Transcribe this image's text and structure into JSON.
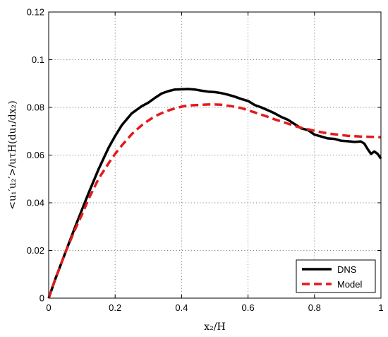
{
  "chart_data": {
    "type": "line",
    "xlabel": "x₂/H",
    "ylabel": "<u₁′u₂′>/uτH(du₁/dx₂)",
    "xlim": [
      0,
      1
    ],
    "ylim": [
      0,
      0.12
    ],
    "xticks": [
      0,
      0.2,
      0.4,
      0.6,
      0.8,
      1
    ],
    "yticks": [
      0,
      0.02,
      0.04,
      0.06,
      0.08,
      0.1,
      0.12
    ],
    "xtick_labels": [
      "0",
      "0.2",
      "0.4",
      "0.6",
      "0.8",
      "1"
    ],
    "ytick_labels": [
      "0",
      "0.02",
      "0.04",
      "0.06",
      "0.08",
      "0.1",
      "0.12"
    ],
    "grid": true,
    "legend_position": "bottom-right",
    "series": [
      {
        "name": "DNS",
        "color": "#000000",
        "style": "solid",
        "x": [
          0,
          0.02,
          0.05,
          0.08,
          0.1,
          0.12,
          0.15,
          0.18,
          0.2,
          0.22,
          0.25,
          0.28,
          0.3,
          0.32,
          0.34,
          0.36,
          0.38,
          0.4,
          0.42,
          0.44,
          0.46,
          0.48,
          0.5,
          0.52,
          0.54,
          0.56,
          0.58,
          0.6,
          0.62,
          0.64,
          0.66,
          0.68,
          0.7,
          0.72,
          0.74,
          0.76,
          0.78,
          0.8,
          0.82,
          0.84,
          0.86,
          0.88,
          0.9,
          0.92,
          0.94,
          0.95,
          0.96,
          0.97,
          0.98,
          0.99,
          1.0
        ],
        "y": [
          0,
          0.008,
          0.019,
          0.03,
          0.037,
          0.044,
          0.054,
          0.063,
          0.068,
          0.0725,
          0.0775,
          0.0805,
          0.082,
          0.084,
          0.0858,
          0.0868,
          0.0875,
          0.0876,
          0.0877,
          0.0875,
          0.087,
          0.0866,
          0.0864,
          0.086,
          0.0853,
          0.0845,
          0.0835,
          0.0827,
          0.081,
          0.08,
          0.0788,
          0.0775,
          0.076,
          0.0748,
          0.073,
          0.0712,
          0.0705,
          0.0686,
          0.0678,
          0.067,
          0.0668,
          0.066,
          0.0658,
          0.0655,
          0.0657,
          0.0648,
          0.0625,
          0.0605,
          0.0615,
          0.0605,
          0.0585
        ]
      },
      {
        "name": "Model",
        "color": "#e31a1c",
        "style": "dashed",
        "x": [
          0,
          0.02,
          0.05,
          0.08,
          0.1,
          0.12,
          0.15,
          0.18,
          0.2,
          0.22,
          0.25,
          0.28,
          0.3,
          0.32,
          0.35,
          0.38,
          0.4,
          0.42,
          0.45,
          0.48,
          0.5,
          0.52,
          0.55,
          0.58,
          0.6,
          0.62,
          0.65,
          0.68,
          0.7,
          0.72,
          0.75,
          0.78,
          0.8,
          0.82,
          0.85,
          0.88,
          0.9,
          0.92,
          0.95,
          0.98,
          1.0
        ],
        "y": [
          0,
          0.008,
          0.019,
          0.029,
          0.035,
          0.0415,
          0.05,
          0.0565,
          0.0605,
          0.064,
          0.0688,
          0.0725,
          0.0745,
          0.0763,
          0.0782,
          0.0796,
          0.0803,
          0.0808,
          0.081,
          0.0812,
          0.0812,
          0.0811,
          0.0805,
          0.0797,
          0.0788,
          0.0779,
          0.0765,
          0.075,
          0.0741,
          0.0732,
          0.0718,
          0.0708,
          0.0702,
          0.0696,
          0.0689,
          0.0684,
          0.0681,
          0.0679,
          0.0677,
          0.0676,
          0.0675
        ]
      }
    ]
  }
}
